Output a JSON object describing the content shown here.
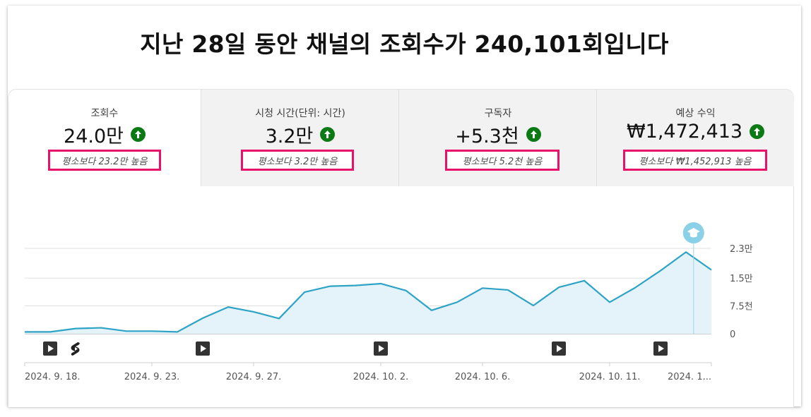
{
  "headline": "지난 28일 동안 채널의 조회수가 240,101회입니다",
  "tabs": [
    {
      "label": "조회수",
      "value": "24.0만",
      "compare": "평소보다 23.2만 높음",
      "trend": "up"
    },
    {
      "label": "시청 시간(단위: 시간)",
      "value": "3.2만",
      "compare": "평소보다 3.2만 높음",
      "trend": "up"
    },
    {
      "label": "구독자",
      "value": "+5.3천",
      "compare": "평소보다 5.2천 높음",
      "trend": "up"
    },
    {
      "label": "예상 수익",
      "value": "₩1,472,413",
      "compare": "평소보다 ₩1,452,913 높음",
      "trend": "up"
    }
  ],
  "colors": {
    "accent_line": "#2ea3c6",
    "area_fill": "#e3f3f9",
    "up_badge": "#0b7a14",
    "highlight_box": "#e8126b",
    "marker_badge": "#8ad0e6"
  },
  "chart_data": {
    "type": "area",
    "ylim": [
      0,
      23000
    ],
    "y_ticks": [
      {
        "value": 0,
        "label": "0"
      },
      {
        "value": 7500,
        "label": "7.5천"
      },
      {
        "value": 15000,
        "label": "1.5만"
      },
      {
        "value": 23000,
        "label": "2.3만"
      }
    ],
    "x_labels": [
      {
        "day": 0,
        "label": "2024. 9. 18."
      },
      {
        "day": 5,
        "label": "2024. 9. 23."
      },
      {
        "day": 9,
        "label": "2024. 9. 27."
      },
      {
        "day": 14,
        "label": "2024. 10. 2."
      },
      {
        "day": 18,
        "label": "2024. 10. 6."
      },
      {
        "day": 23,
        "label": "2024. 10. 11."
      },
      {
        "day": 27,
        "label": "2024. 1..."
      }
    ],
    "series": [
      {
        "values": [
          500,
          500,
          1400,
          1600,
          700,
          700,
          500,
          4200,
          7200,
          5900,
          4100,
          11200,
          12800,
          13000,
          13500,
          11600,
          6300,
          8500,
          12300,
          11800,
          7600,
          12500,
          14300,
          8500,
          12400,
          17000,
          22000,
          17200
        ]
      }
    ],
    "video_markers": [
      {
        "day": 1,
        "type": "video"
      },
      {
        "day": 2,
        "type": "shorts"
      },
      {
        "day": 7,
        "type": "video"
      },
      {
        "day": 14,
        "type": "video"
      },
      {
        "day": 21,
        "type": "video"
      },
      {
        "day": 25,
        "type": "video"
      }
    ],
    "milestone_day": 26.3,
    "milestone_icon": "graduation-cap-icon"
  }
}
